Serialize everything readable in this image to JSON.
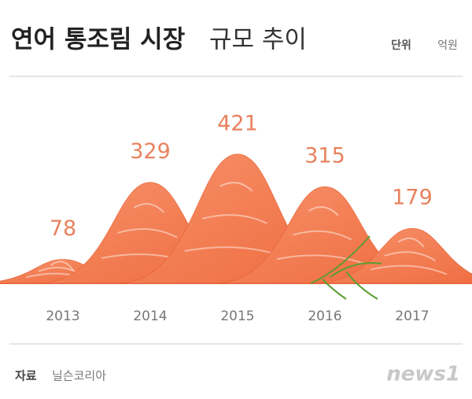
{
  "chart_data": {
    "type": "mountain",
    "title_bold": "연어 통조림 시장",
    "title_regular": "규모 추이",
    "unit_label": "단위",
    "unit": "억원",
    "categories": [
      "2013",
      "2014",
      "2015",
      "2016",
      "2017"
    ],
    "values": [
      78,
      329,
      421,
      315,
      179
    ],
    "color": "#f47a4c",
    "source_label": "자료",
    "source": "닐슨코리아",
    "logo": "news1"
  }
}
